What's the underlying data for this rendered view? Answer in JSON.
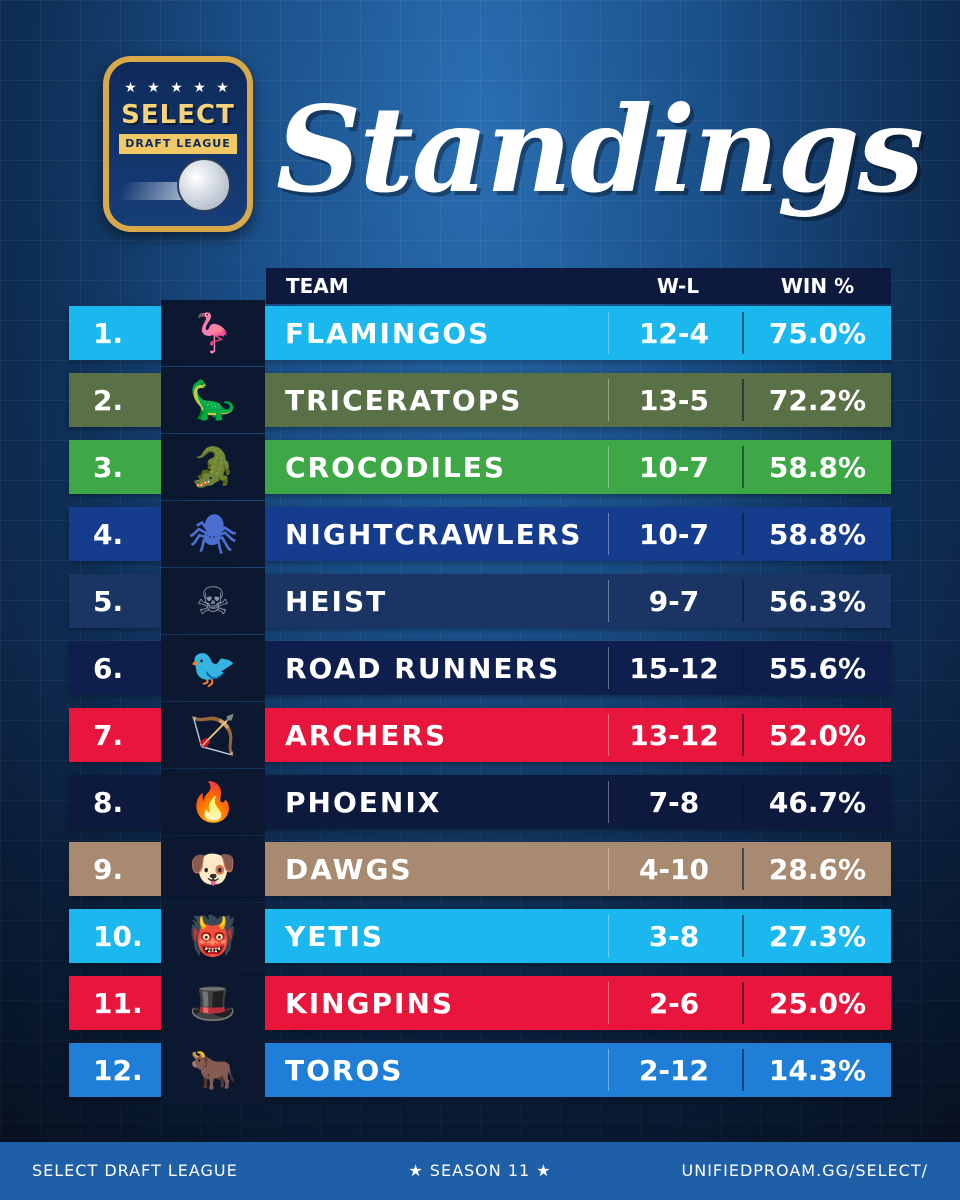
{
  "logo": {
    "stars": "★ ★ ★ ★ ★",
    "select": "SELECT",
    "banner": "DRAFT LEAGUE"
  },
  "title": "Standings",
  "header": {
    "team": "TEAM",
    "wl": "W-L",
    "pct": "WIN %"
  },
  "rows": [
    {
      "rank": "1.",
      "team": "FLAMINGOS",
      "wl": "12-4",
      "pct": "75.0%",
      "color": "#1ab8ef",
      "icon": "flamingo-icon",
      "glyph": "🦩",
      "glyph_color": "#ff5fa8"
    },
    {
      "rank": "2.",
      "team": "TRICERATOPS",
      "wl": "13-5",
      "pct": "72.2%",
      "color": "#5a7046",
      "icon": "triceratops-icon",
      "glyph": "🦕",
      "glyph_color": "#8aa764"
    },
    {
      "rank": "3.",
      "team": "CROCODILES",
      "wl": "10-7",
      "pct": "58.8%",
      "color": "#3ea846",
      "icon": "crocodile-icon",
      "glyph": "🐊",
      "glyph_color": "#48b54e"
    },
    {
      "rank": "4.",
      "team": "NIGHTCRAWLERS",
      "wl": "10-7",
      "pct": "58.8%",
      "color": "#163c8e",
      "icon": "spider-icon",
      "glyph": "🕷",
      "glyph_color": "#4b6fd0"
    },
    {
      "rank": "5.",
      "team": "HEIST",
      "wl": "9-7",
      "pct": "56.3%",
      "color": "#1a3563",
      "icon": "gasmask-icon",
      "glyph": "☠",
      "glyph_color": "#8b93a6"
    },
    {
      "rank": "6.",
      "team": "ROAD RUNNERS",
      "wl": "15-12",
      "pct": "55.6%",
      "color": "#0f1f4d",
      "icon": "roadrunner-icon",
      "glyph": "🐦",
      "glyph_color": "#3c6fd6"
    },
    {
      "rank": "7.",
      "team": "ARCHERS",
      "wl": "13-12",
      "pct": "52.0%",
      "color": "#e8163c",
      "icon": "archer-icon",
      "glyph": "🏹",
      "glyph_color": "#d3223e"
    },
    {
      "rank": "8.",
      "team": "PHOENIX",
      "wl": "7-8",
      "pct": "46.7%",
      "color": "#0d1a3d",
      "icon": "phoenix-icon",
      "glyph": "🔥",
      "glyph_color": "#ff5a1a"
    },
    {
      "rank": "9.",
      "team": "DAWGS",
      "wl": "4-10",
      "pct": "28.6%",
      "color": "#a88a70",
      "icon": "bulldog-icon",
      "glyph": "🐶",
      "glyph_color": "#d9d3c8"
    },
    {
      "rank": "10.",
      "team": "YETIS",
      "wl": "3-8",
      "pct": "27.3%",
      "color": "#1ab8ef",
      "icon": "yeti-icon",
      "glyph": "👹",
      "glyph_color": "#aab7c4"
    },
    {
      "rank": "11.",
      "team": "KINGPINS",
      "wl": "2-6",
      "pct": "25.0%",
      "color": "#e8163c",
      "icon": "gangster-icon",
      "glyph": "🎩",
      "glyph_color": "#c8c8c8"
    },
    {
      "rank": "12.",
      "team": "TOROS",
      "wl": "2-12",
      "pct": "14.3%",
      "color": "#1f7fd8",
      "icon": "bull-icon",
      "glyph": "🐂",
      "glyph_color": "#e21d3b"
    }
  ],
  "footer": {
    "left": "SELECT DRAFT LEAGUE",
    "center": "★ SEASON 11 ★",
    "right": "UNIFIEDPROAM.GG/SELECT/"
  }
}
